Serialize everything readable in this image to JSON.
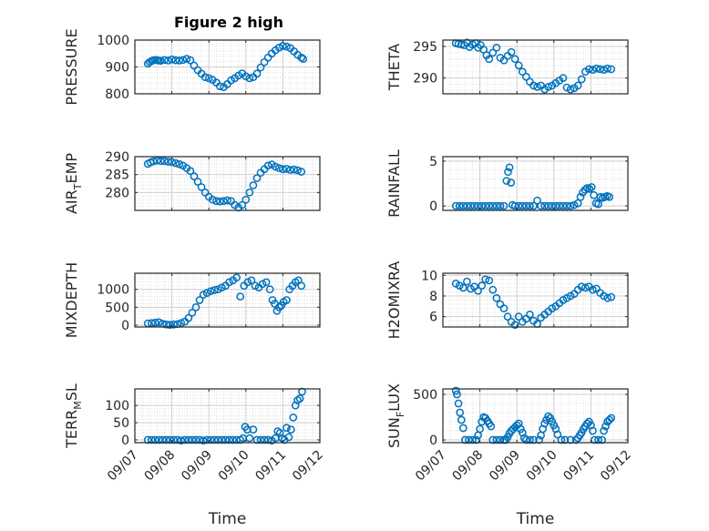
{
  "figure": {
    "title": "Figure 2 high"
  },
  "colors": {
    "marker": "#0072BD",
    "axis": "#262626",
    "grid": "#d9d9d9",
    "background": "#ffffff"
  },
  "chart_data": [
    {
      "type": "scatter",
      "ylabel": "PRESSURE",
      "ylabel_parts": [
        "PRESSURE"
      ],
      "xlim": [
        "09/07",
        "09/12"
      ],
      "ylim": [
        800,
        1000
      ],
      "yticks": [
        "800",
        "900",
        "1000"
      ],
      "yticks_values": [
        800,
        900,
        1000
      ],
      "xticks": [],
      "show_x_ticklabels": false,
      "xlabel": "",
      "grid": true,
      "minor_grid": true,
      "x": [
        0.35,
        0.4,
        0.45,
        0.5,
        0.55,
        0.6,
        0.65,
        0.7,
        0.8,
        0.9,
        1.0,
        1.1,
        1.2,
        1.3,
        1.4,
        1.5,
        1.6,
        1.7,
        1.8,
        1.9,
        2.0,
        2.1,
        2.2,
        2.3,
        2.4,
        2.5,
        2.6,
        2.7,
        2.8,
        2.9,
        3.0,
        3.1,
        3.2,
        3.3,
        3.4,
        3.5,
        3.6,
        3.7,
        3.8,
        3.9,
        4.0,
        4.1,
        4.2,
        4.3,
        4.4,
        4.5,
        4.55
      ],
      "y": [
        912,
        918,
        922,
        925,
        926,
        925,
        924,
        923,
        926,
        924,
        928,
        925,
        924,
        926,
        930,
        925,
        905,
        888,
        875,
        862,
        858,
        852,
        842,
        828,
        825,
        836,
        850,
        858,
        868,
        876,
        865,
        858,
        862,
        875,
        898,
        918,
        935,
        950,
        962,
        972,
        978,
        976,
        970,
        958,
        945,
        935,
        930
      ]
    },
    {
      "type": "scatter",
      "ylabel": "THETA",
      "ylabel_parts": [
        "THETA"
      ],
      "xlim": [
        "09/07",
        "09/12"
      ],
      "ylim": [
        287.5,
        296
      ],
      "yticks": [
        "290",
        "295"
      ],
      "yticks_values": [
        290,
        295
      ],
      "xticks": [],
      "show_x_ticklabels": false,
      "xlabel": "",
      "grid": true,
      "minor_grid": true,
      "x": [
        0.35,
        0.42,
        0.5,
        0.58,
        0.65,
        0.72,
        0.8,
        0.88,
        0.95,
        1.02,
        1.1,
        1.18,
        1.25,
        1.35,
        1.45,
        1.55,
        1.65,
        1.75,
        1.85,
        1.95,
        2.05,
        2.15,
        2.25,
        2.35,
        2.45,
        2.55,
        2.65,
        2.75,
        2.85,
        2.95,
        3.05,
        3.15,
        3.25,
        3.35,
        3.45,
        3.55,
        3.65,
        3.75,
        3.85,
        3.95,
        4.05,
        4.15,
        4.25,
        4.35,
        4.45,
        4.55
      ],
      "y": [
        295.5,
        295.4,
        295.3,
        295.2,
        295.6,
        294.9,
        295.3,
        295.5,
        294.8,
        295.2,
        294.5,
        293.6,
        293.0,
        294.0,
        294.8,
        293.2,
        292.8,
        293.5,
        294.1,
        293.0,
        292.0,
        291.0,
        290.2,
        289.4,
        288.8,
        288.6,
        288.8,
        288.2,
        288.6,
        288.8,
        289.2,
        289.6,
        290.0,
        288.5,
        288.2,
        288.4,
        288.8,
        289.8,
        291.0,
        291.4,
        291.3,
        291.5,
        291.4,
        291.3,
        291.5,
        291.4
      ]
    },
    {
      "type": "scatter",
      "ylabel": "AIR_TEMP",
      "ylabel_parts": [
        "AIR",
        "T",
        "EMP"
      ],
      "xlim": [
        "09/07",
        "09/12"
      ],
      "ylim": [
        275,
        290
      ],
      "yticks": [
        "280",
        "285",
        "290"
      ],
      "yticks_values": [
        280,
        285,
        290
      ],
      "xticks": [],
      "show_x_ticklabels": false,
      "xlabel": "",
      "grid": true,
      "minor_grid": true,
      "x": [
        0.35,
        0.42,
        0.5,
        0.6,
        0.7,
        0.8,
        0.9,
        1.0,
        1.1,
        1.2,
        1.3,
        1.4,
        1.5,
        1.6,
        1.7,
        1.8,
        1.9,
        2.0,
        2.1,
        2.2,
        2.3,
        2.4,
        2.5,
        2.6,
        2.7,
        2.8,
        2.9,
        3.0,
        3.1,
        3.2,
        3.3,
        3.4,
        3.5,
        3.6,
        3.7,
        3.8,
        3.9,
        4.0,
        4.1,
        4.2,
        4.3,
        4.4,
        4.5
      ],
      "y": [
        288,
        288.4,
        288.7,
        288.9,
        288.8,
        288.8,
        288.6,
        288.5,
        288.2,
        287.9,
        287.5,
        286.8,
        286.0,
        284.5,
        283.0,
        281.5,
        280.0,
        278.8,
        278.0,
        277.6,
        277.5,
        277.6,
        277.8,
        277.6,
        276.5,
        275.8,
        276.5,
        278.0,
        280.0,
        282.0,
        284.0,
        285.5,
        286.5,
        287.5,
        287.8,
        287.2,
        286.8,
        286.5,
        286.6,
        286.3,
        286.4,
        286.2,
        285.8
      ]
    },
    {
      "type": "scatter",
      "ylabel": "RAINFALL",
      "ylabel_parts": [
        "RAINFALL"
      ],
      "xlim": [
        "09/07",
        "09/12"
      ],
      "ylim": [
        -0.5,
        5.5
      ],
      "yticks": [
        "0",
        "5"
      ],
      "yticks_values": [
        0,
        5
      ],
      "xticks": [],
      "show_x_ticklabels": false,
      "xlabel": "",
      "grid": true,
      "minor_grid": true,
      "x": [
        0.35,
        0.45,
        0.55,
        0.65,
        0.75,
        0.85,
        0.95,
        1.05,
        1.15,
        1.25,
        1.35,
        1.45,
        1.55,
        1.65,
        1.72,
        1.76,
        1.8,
        1.84,
        1.88,
        1.95,
        2.05,
        2.15,
        2.25,
        2.35,
        2.45,
        2.55,
        2.65,
        2.75,
        2.85,
        2.95,
        3.05,
        3.15,
        3.25,
        3.35,
        3.45,
        3.55,
        3.65,
        3.72,
        3.78,
        3.84,
        3.9,
        3.96,
        4.02,
        4.08,
        4.14,
        4.2,
        4.26,
        4.32,
        4.38,
        4.44,
        4.5
      ],
      "y": [
        0,
        0,
        0,
        0,
        0,
        0,
        0,
        0,
        0,
        0,
        0,
        0,
        0,
        0,
        2.8,
        3.8,
        4.3,
        2.6,
        0.1,
        0,
        0,
        0,
        0,
        0,
        0,
        0.6,
        0,
        0,
        0,
        0,
        0,
        0,
        0,
        0,
        0,
        0.1,
        0.3,
        1.0,
        1.5,
        1.8,
        2.0,
        1.9,
        2.1,
        1.2,
        0.3,
        0.2,
        1.0,
        0.9,
        1.0,
        1.1,
        1.0
      ]
    },
    {
      "type": "scatter",
      "ylabel": "MIXDEPTH",
      "ylabel_parts": [
        "MIXDEPTH"
      ],
      "xlim": [
        "09/07",
        "09/12"
      ],
      "ylim": [
        -50,
        1450
      ],
      "yticks": [
        "0",
        "500",
        "1000"
      ],
      "yticks_values": [
        0,
        500,
        1000
      ],
      "xticks": [],
      "show_x_ticklabels": false,
      "xlabel": "",
      "grid": true,
      "minor_grid": true,
      "x": [
        0.35,
        0.45,
        0.55,
        0.65,
        0.75,
        0.85,
        0.95,
        1.05,
        1.15,
        1.25,
        1.35,
        1.45,
        1.55,
        1.65,
        1.75,
        1.85,
        1.95,
        2.05,
        2.15,
        2.25,
        2.35,
        2.45,
        2.55,
        2.65,
        2.75,
        2.85,
        2.95,
        3.05,
        3.15,
        3.25,
        3.35,
        3.45,
        3.55,
        3.65,
        3.72,
        3.78,
        3.84,
        3.9,
        3.96,
        4.02,
        4.1,
        4.18,
        4.26,
        4.34,
        4.42,
        4.5
      ],
      "y": [
        50,
        60,
        70,
        80,
        40,
        20,
        10,
        20,
        30,
        60,
        100,
        200,
        350,
        500,
        700,
        850,
        900,
        950,
        980,
        1000,
        1050,
        1100,
        1200,
        1250,
        1330,
        800,
        1100,
        1200,
        1250,
        1100,
        1050,
        1150,
        1200,
        1000,
        700,
        600,
        400,
        500,
        550,
        650,
        700,
        1000,
        1100,
        1200,
        1250,
        1100
      ]
    },
    {
      "type": "scatter",
      "ylabel": "H2OMIXRA",
      "ylabel_parts": [
        "H2OMIXRA"
      ],
      "xlim": [
        "09/07",
        "09/12"
      ],
      "ylim": [
        5,
        10.2
      ],
      "yticks": [
        "6",
        "8",
        "10"
      ],
      "yticks_values": [
        6,
        8,
        10
      ],
      "xticks": [],
      "show_x_ticklabels": false,
      "xlabel": "",
      "grid": true,
      "minor_grid": true,
      "x": [
        0.35,
        0.45,
        0.55,
        0.65,
        0.75,
        0.85,
        0.95,
        1.05,
        1.15,
        1.25,
        1.35,
        1.45,
        1.55,
        1.65,
        1.75,
        1.85,
        1.95,
        2.05,
        2.15,
        2.25,
        2.35,
        2.45,
        2.55,
        2.65,
        2.75,
        2.85,
        2.95,
        3.05,
        3.15,
        3.25,
        3.35,
        3.45,
        3.55,
        3.65,
        3.75,
        3.85,
        3.95,
        4.05,
        4.15,
        4.25,
        4.35,
        4.45,
        4.55
      ],
      "y": [
        9.2,
        9.0,
        8.8,
        9.4,
        8.7,
        8.9,
        8.5,
        9.0,
        9.6,
        9.5,
        8.6,
        7.8,
        7.2,
        6.8,
        6.0,
        5.5,
        5.2,
        6.0,
        5.5,
        5.8,
        6.2,
        5.6,
        5.3,
        5.9,
        6.2,
        6.5,
        6.8,
        7.0,
        7.3,
        7.6,
        7.8,
        8.0,
        8.2,
        8.6,
        8.9,
        8.8,
        8.9,
        8.6,
        8.7,
        8.3,
        8.0,
        7.8,
        7.9
      ]
    },
    {
      "type": "scatter",
      "ylabel": "TERR_MSL",
      "ylabel_parts": [
        "TERR",
        "M",
        "SL"
      ],
      "xlim": [
        "09/07",
        "09/12"
      ],
      "ylim": [
        -8,
        148
      ],
      "yticks": [
        "0",
        "50",
        "100"
      ],
      "yticks_values": [
        0,
        50,
        100
      ],
      "xticks": [
        "09/07",
        "09/08",
        "09/09",
        "09/10",
        "09/11",
        "09/12"
      ],
      "xticks_values": [
        0,
        1,
        2,
        3,
        4,
        5
      ],
      "show_x_ticklabels": true,
      "xlabel": "Time",
      "grid": true,
      "minor_grid": true,
      "x": [
        0.35,
        0.45,
        0.55,
        0.65,
        0.75,
        0.85,
        0.95,
        1.05,
        1.15,
        1.25,
        1.35,
        1.45,
        1.55,
        1.65,
        1.75,
        1.85,
        1.95,
        2.05,
        2.15,
        2.25,
        2.35,
        2.45,
        2.55,
        2.65,
        2.75,
        2.85,
        2.92,
        2.98,
        3.04,
        3.1,
        3.2,
        3.3,
        3.4,
        3.5,
        3.6,
        3.7,
        3.8,
        3.86,
        3.92,
        3.98,
        4.04,
        4.1,
        4.16,
        4.22,
        4.28,
        4.34,
        4.4,
        4.46,
        4.52
      ],
      "y": [
        0,
        0,
        0,
        0,
        0,
        0,
        0,
        0,
        0,
        -2,
        0,
        0,
        0,
        0,
        0,
        -2,
        0,
        0,
        0,
        0,
        0,
        0,
        0,
        0,
        0,
        0,
        5,
        38,
        30,
        5,
        30,
        0,
        0,
        0,
        0,
        -2,
        5,
        25,
        20,
        5,
        0,
        35,
        8,
        30,
        65,
        100,
        115,
        120,
        140
      ]
    },
    {
      "type": "scatter",
      "ylabel": "SUN_FLUX",
      "ylabel_parts": [
        "SUN",
        "F",
        "LUX"
      ],
      "xlim": [
        "09/07",
        "09/12"
      ],
      "ylim": [
        -30,
        560
      ],
      "yticks": [
        "0",
        "500"
      ],
      "yticks_values": [
        0,
        500
      ],
      "xticks": [
        "09/07",
        "09/08",
        "09/09",
        "09/10",
        "09/11",
        "09/12"
      ],
      "xticks_values": [
        0,
        1,
        2,
        3,
        4,
        5
      ],
      "show_x_ticklabels": true,
      "xlabel": "Time",
      "grid": true,
      "minor_grid": true,
      "x": [
        0.35,
        0.38,
        0.42,
        0.46,
        0.5,
        0.55,
        0.6,
        0.7,
        0.8,
        0.9,
        0.95,
        1.0,
        1.05,
        1.1,
        1.15,
        1.2,
        1.25,
        1.3,
        1.35,
        1.45,
        1.55,
        1.65,
        1.7,
        1.75,
        1.8,
        1.85,
        1.9,
        1.95,
        2.0,
        2.05,
        2.1,
        2.15,
        2.2,
        2.25,
        2.35,
        2.45,
        2.6,
        2.65,
        2.7,
        2.75,
        2.8,
        2.85,
        2.9,
        2.95,
        3.0,
        3.05,
        3.1,
        3.2,
        3.3,
        3.45,
        3.6,
        3.65,
        3.7,
        3.75,
        3.8,
        3.85,
        3.9,
        3.95,
        4.0,
        4.05,
        4.1,
        4.2,
        4.3,
        4.35,
        4.4,
        4.45,
        4.5,
        4.55
      ],
      "y": [
        540,
        500,
        400,
        300,
        220,
        130,
        0,
        0,
        0,
        0,
        50,
        120,
        200,
        250,
        240,
        210,
        180,
        150,
        0,
        0,
        0,
        0,
        0,
        30,
        70,
        100,
        120,
        140,
        160,
        180,
        120,
        80,
        20,
        0,
        0,
        0,
        0,
        50,
        120,
        180,
        220,
        260,
        240,
        200,
        160,
        120,
        60,
        0,
        0,
        0,
        0,
        20,
        50,
        80,
        120,
        150,
        180,
        200,
        160,
        100,
        0,
        0,
        0,
        100,
        150,
        200,
        220,
        240
      ]
    }
  ]
}
